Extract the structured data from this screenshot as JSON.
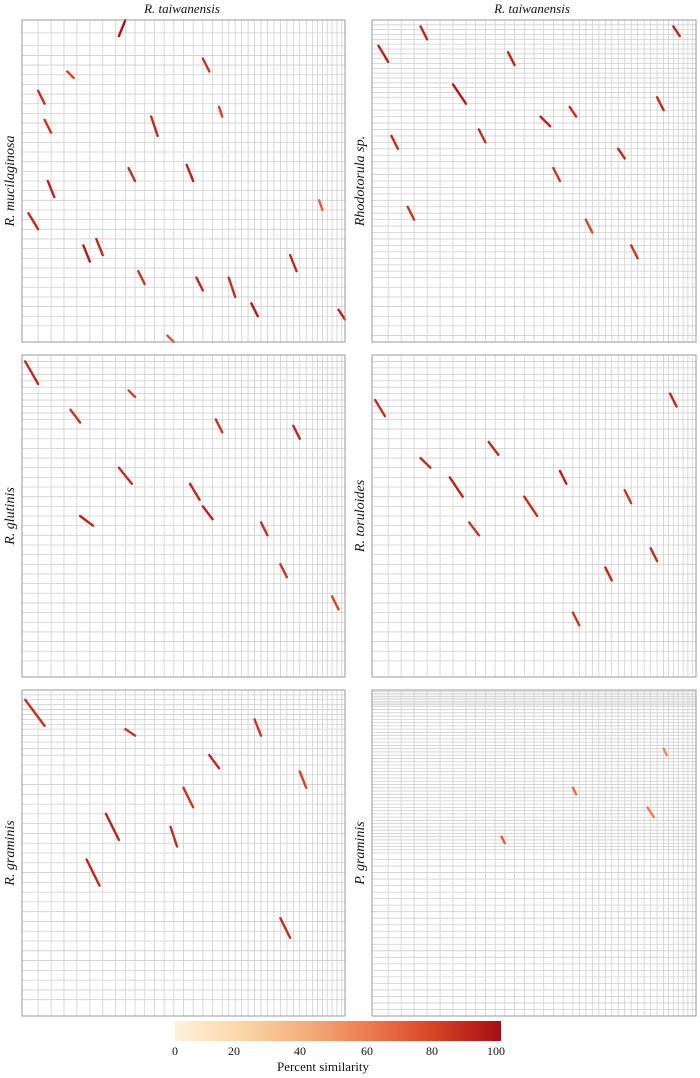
{
  "column_titles": [
    "R. taiwanensis",
    "R. taiwanensis"
  ],
  "colorbar": {
    "title": "Percent similarity",
    "ticks": [
      "0",
      "20",
      "40",
      "60",
      "80",
      "100"
    ],
    "colors": [
      "#fdf1dd",
      "#fbd7a8",
      "#f5ad7c",
      "#ec7a4d",
      "#d64226",
      "#a50f15"
    ]
  },
  "chart_data": [
    {
      "type": "scatter",
      "title": "R. taiwanensis",
      "ylabel": "R. mucilaginosa",
      "xlim": [
        0,
        1
      ],
      "ylim": [
        0,
        1
      ],
      "grid": true,
      "x_grid_fractions": [
        0.05,
        0.09,
        0.13,
        0.17,
        0.21,
        0.25,
        0.29,
        0.32,
        0.35,
        0.38,
        0.41,
        0.44,
        0.47,
        0.5,
        0.53,
        0.56,
        0.59,
        0.62,
        0.64,
        0.66,
        0.68,
        0.7,
        0.72,
        0.74,
        0.76,
        0.78,
        0.8,
        0.82,
        0.84,
        0.86,
        0.88,
        0.9,
        0.915,
        0.93,
        0.945,
        0.96,
        0.975,
        0.99
      ],
      "y_grid_fractions": [
        0.04,
        0.08,
        0.11,
        0.14,
        0.17,
        0.2,
        0.23,
        0.26,
        0.29,
        0.32,
        0.35,
        0.38,
        0.41,
        0.44,
        0.47,
        0.5,
        0.53,
        0.56,
        0.59,
        0.62,
        0.65,
        0.68,
        0.71,
        0.74,
        0.77,
        0.8,
        0.83,
        0.86,
        0.89,
        0.92,
        0.95
      ],
      "segments": [
        {
          "x1": 0.02,
          "y1": 0.6,
          "x2": 0.05,
          "y2": 0.65,
          "s": 90
        },
        {
          "x1": 0.05,
          "y1": 0.22,
          "x2": 0.07,
          "y2": 0.26,
          "s": 88
        },
        {
          "x1": 0.07,
          "y1": 0.31,
          "x2": 0.09,
          "y2": 0.35,
          "s": 85
        },
        {
          "x1": 0.08,
          "y1": 0.5,
          "x2": 0.1,
          "y2": 0.55,
          "s": 92
        },
        {
          "x1": 0.14,
          "y1": 0.16,
          "x2": 0.16,
          "y2": 0.18,
          "s": 80
        },
        {
          "x1": 0.19,
          "y1": 0.7,
          "x2": 0.21,
          "y2": 0.75,
          "s": 95
        },
        {
          "x1": 0.23,
          "y1": 0.68,
          "x2": 0.25,
          "y2": 0.73,
          "s": 90
        },
        {
          "x1": 0.3,
          "y1": 0.05,
          "x2": 0.32,
          "y2": 0.0,
          "s": 98
        },
        {
          "x1": 0.33,
          "y1": 0.46,
          "x2": 0.35,
          "y2": 0.5,
          "s": 88
        },
        {
          "x1": 0.36,
          "y1": 0.78,
          "x2": 0.38,
          "y2": 0.82,
          "s": 85
        },
        {
          "x1": 0.4,
          "y1": 0.3,
          "x2": 0.42,
          "y2": 0.36,
          "s": 90
        },
        {
          "x1": 0.45,
          "y1": 0.98,
          "x2": 0.47,
          "y2": 1.0,
          "s": 75
        },
        {
          "x1": 0.51,
          "y1": 0.45,
          "x2": 0.53,
          "y2": 0.5,
          "s": 92
        },
        {
          "x1": 0.54,
          "y1": 0.8,
          "x2": 0.56,
          "y2": 0.84,
          "s": 90
        },
        {
          "x1": 0.56,
          "y1": 0.12,
          "x2": 0.58,
          "y2": 0.16,
          "s": 85
        },
        {
          "x1": 0.61,
          "y1": 0.27,
          "x2": 0.62,
          "y2": 0.3,
          "s": 80
        },
        {
          "x1": 0.64,
          "y1": 0.8,
          "x2": 0.66,
          "y2": 0.86,
          "s": 88
        },
        {
          "x1": 0.71,
          "y1": 0.88,
          "x2": 0.73,
          "y2": 0.92,
          "s": 95
        },
        {
          "x1": 0.83,
          "y1": 0.73,
          "x2": 0.85,
          "y2": 0.78,
          "s": 90
        },
        {
          "x1": 0.92,
          "y1": 0.56,
          "x2": 0.93,
          "y2": 0.59,
          "s": 70
        },
        {
          "x1": 0.98,
          "y1": 0.9,
          "x2": 1.0,
          "y2": 0.93,
          "s": 92
        }
      ]
    },
    {
      "type": "scatter",
      "title": "R. taiwanensis",
      "ylabel": "Rhodotorula sp.",
      "xlim": [
        0,
        1
      ],
      "ylim": [
        0,
        1
      ],
      "grid": true,
      "x_grid_fractions": [
        0.05,
        0.09,
        0.13,
        0.17,
        0.21,
        0.25,
        0.29,
        0.32,
        0.35,
        0.38,
        0.41,
        0.44,
        0.47,
        0.5,
        0.53,
        0.56,
        0.59,
        0.62,
        0.64,
        0.66,
        0.68,
        0.7,
        0.72,
        0.74,
        0.76,
        0.78,
        0.8,
        0.82,
        0.84,
        0.86,
        0.88,
        0.9,
        0.915,
        0.93,
        0.945,
        0.96,
        0.975,
        0.99
      ],
      "y_grid_fractions": [
        0.015,
        0.03,
        0.045,
        0.06,
        0.075,
        0.09,
        0.105,
        0.12,
        0.135,
        0.15,
        0.165,
        0.18,
        0.195,
        0.21,
        0.225,
        0.24,
        0.26,
        0.28,
        0.3,
        0.32,
        0.34,
        0.36,
        0.38,
        0.4,
        0.42,
        0.44,
        0.46,
        0.48,
        0.5,
        0.52,
        0.54,
        0.56,
        0.58,
        0.6,
        0.62,
        0.64,
        0.66,
        0.68,
        0.7,
        0.72,
        0.74,
        0.76,
        0.78,
        0.8,
        0.83,
        0.86,
        0.89,
        0.92,
        0.95,
        0.98
      ],
      "segments": [
        {
          "x1": 0.02,
          "y1": 0.08,
          "x2": 0.05,
          "y2": 0.13,
          "s": 92
        },
        {
          "x1": 0.06,
          "y1": 0.36,
          "x2": 0.08,
          "y2": 0.4,
          "s": 88
        },
        {
          "x1": 0.11,
          "y1": 0.58,
          "x2": 0.13,
          "y2": 0.62,
          "s": 85
        },
        {
          "x1": 0.15,
          "y1": 0.02,
          "x2": 0.17,
          "y2": 0.06,
          "s": 90
        },
        {
          "x1": 0.25,
          "y1": 0.2,
          "x2": 0.29,
          "y2": 0.26,
          "s": 95
        },
        {
          "x1": 0.33,
          "y1": 0.34,
          "x2": 0.35,
          "y2": 0.38,
          "s": 88
        },
        {
          "x1": 0.42,
          "y1": 0.1,
          "x2": 0.44,
          "y2": 0.14,
          "s": 90
        },
        {
          "x1": 0.52,
          "y1": 0.3,
          "x2": 0.55,
          "y2": 0.33,
          "s": 92
        },
        {
          "x1": 0.56,
          "y1": 0.46,
          "x2": 0.58,
          "y2": 0.5,
          "s": 85
        },
        {
          "x1": 0.61,
          "y1": 0.27,
          "x2": 0.63,
          "y2": 0.3,
          "s": 88
        },
        {
          "x1": 0.66,
          "y1": 0.62,
          "x2": 0.68,
          "y2": 0.66,
          "s": 80
        },
        {
          "x1": 0.76,
          "y1": 0.4,
          "x2": 0.78,
          "y2": 0.43,
          "s": 90
        },
        {
          "x1": 0.8,
          "y1": 0.7,
          "x2": 0.82,
          "y2": 0.74,
          "s": 85
        },
        {
          "x1": 0.88,
          "y1": 0.24,
          "x2": 0.9,
          "y2": 0.28,
          "s": 88
        },
        {
          "x1": 0.93,
          "y1": 0.02,
          "x2": 0.95,
          "y2": 0.05,
          "s": 90
        }
      ]
    },
    {
      "type": "scatter",
      "title": "",
      "ylabel": "R. glutinis",
      "xlim": [
        0,
        1
      ],
      "ylim": [
        0,
        1
      ],
      "grid": true,
      "x_grid_fractions": [
        0.05,
        0.09,
        0.13,
        0.17,
        0.21,
        0.25,
        0.29,
        0.32,
        0.35,
        0.38,
        0.41,
        0.44,
        0.47,
        0.5,
        0.53,
        0.56,
        0.59,
        0.62,
        0.64,
        0.66,
        0.68,
        0.7,
        0.72,
        0.74,
        0.76,
        0.78,
        0.8,
        0.82,
        0.84,
        0.86,
        0.88,
        0.9,
        0.915,
        0.93,
        0.945,
        0.96,
        0.975,
        0.99
      ],
      "y_grid_fractions": [
        0.02,
        0.04,
        0.06,
        0.08,
        0.1,
        0.12,
        0.14,
        0.16,
        0.18,
        0.2,
        0.23,
        0.26,
        0.29,
        0.32,
        0.35,
        0.38,
        0.41,
        0.44,
        0.47,
        0.5,
        0.53,
        0.56,
        0.59,
        0.62,
        0.65,
        0.68,
        0.71,
        0.74,
        0.77,
        0.8,
        0.83,
        0.86,
        0.89,
        0.92,
        0.95
      ],
      "segments": [
        {
          "x1": 0.01,
          "y1": 0.02,
          "x2": 0.05,
          "y2": 0.09,
          "s": 90
        },
        {
          "x1": 0.15,
          "y1": 0.17,
          "x2": 0.18,
          "y2": 0.21,
          "s": 85
        },
        {
          "x1": 0.18,
          "y1": 0.5,
          "x2": 0.22,
          "y2": 0.53,
          "s": 92
        },
        {
          "x1": 0.3,
          "y1": 0.35,
          "x2": 0.34,
          "y2": 0.4,
          "s": 88
        },
        {
          "x1": 0.33,
          "y1": 0.11,
          "x2": 0.35,
          "y2": 0.13,
          "s": 80
        },
        {
          "x1": 0.52,
          "y1": 0.4,
          "x2": 0.55,
          "y2": 0.45,
          "s": 90
        },
        {
          "x1": 0.56,
          "y1": 0.47,
          "x2": 0.59,
          "y2": 0.51,
          "s": 92
        },
        {
          "x1": 0.6,
          "y1": 0.2,
          "x2": 0.62,
          "y2": 0.24,
          "s": 85
        },
        {
          "x1": 0.74,
          "y1": 0.52,
          "x2": 0.76,
          "y2": 0.56,
          "s": 88
        },
        {
          "x1": 0.8,
          "y1": 0.65,
          "x2": 0.82,
          "y2": 0.69,
          "s": 85
        },
        {
          "x1": 0.84,
          "y1": 0.22,
          "x2": 0.86,
          "y2": 0.26,
          "s": 90
        },
        {
          "x1": 0.96,
          "y1": 0.75,
          "x2": 0.98,
          "y2": 0.79,
          "s": 80
        }
      ]
    },
    {
      "type": "scatter",
      "title": "",
      "ylabel": "R. toruloides",
      "xlim": [
        0,
        1
      ],
      "ylim": [
        0,
        1
      ],
      "grid": true,
      "x_grid_fractions": [
        0.05,
        0.09,
        0.13,
        0.17,
        0.21,
        0.25,
        0.29,
        0.32,
        0.35,
        0.38,
        0.41,
        0.44,
        0.47,
        0.5,
        0.53,
        0.56,
        0.59,
        0.62,
        0.64,
        0.66,
        0.68,
        0.7,
        0.72,
        0.74,
        0.76,
        0.78,
        0.8,
        0.82,
        0.84,
        0.86,
        0.88,
        0.9,
        0.915,
        0.93,
        0.945,
        0.96,
        0.975,
        0.99
      ],
      "y_grid_fractions": [
        0.02,
        0.04,
        0.06,
        0.08,
        0.1,
        0.12,
        0.14,
        0.16,
        0.18,
        0.2,
        0.23,
        0.26,
        0.29,
        0.32,
        0.35,
        0.38,
        0.41,
        0.44,
        0.47,
        0.5,
        0.53,
        0.56,
        0.59,
        0.62,
        0.65,
        0.68,
        0.71,
        0.74,
        0.77,
        0.8,
        0.83,
        0.86,
        0.89,
        0.92,
        0.95
      ],
      "segments": [
        {
          "x1": 0.01,
          "y1": 0.14,
          "x2": 0.04,
          "y2": 0.19,
          "s": 88
        },
        {
          "x1": 0.15,
          "y1": 0.32,
          "x2": 0.18,
          "y2": 0.35,
          "s": 90
        },
        {
          "x1": 0.24,
          "y1": 0.38,
          "x2": 0.28,
          "y2": 0.44,
          "s": 92
        },
        {
          "x1": 0.3,
          "y1": 0.52,
          "x2": 0.33,
          "y2": 0.56,
          "s": 85
        },
        {
          "x1": 0.36,
          "y1": 0.27,
          "x2": 0.39,
          "y2": 0.31,
          "s": 90
        },
        {
          "x1": 0.47,
          "y1": 0.44,
          "x2": 0.51,
          "y2": 0.5,
          "s": 88
        },
        {
          "x1": 0.58,
          "y1": 0.36,
          "x2": 0.6,
          "y2": 0.4,
          "s": 92
        },
        {
          "x1": 0.62,
          "y1": 0.8,
          "x2": 0.64,
          "y2": 0.84,
          "s": 85
        },
        {
          "x1": 0.72,
          "y1": 0.66,
          "x2": 0.74,
          "y2": 0.7,
          "s": 90
        },
        {
          "x1": 0.78,
          "y1": 0.42,
          "x2": 0.8,
          "y2": 0.46,
          "s": 85
        },
        {
          "x1": 0.86,
          "y1": 0.6,
          "x2": 0.88,
          "y2": 0.64,
          "s": 88
        },
        {
          "x1": 0.92,
          "y1": 0.12,
          "x2": 0.94,
          "y2": 0.16,
          "s": 90
        }
      ]
    },
    {
      "type": "scatter",
      "title": "",
      "ylabel": "R. graminis",
      "xlim": [
        0,
        1
      ],
      "ylim": [
        0,
        1
      ],
      "grid": true,
      "x_grid_fractions": [
        0.05,
        0.09,
        0.13,
        0.17,
        0.21,
        0.25,
        0.29,
        0.32,
        0.35,
        0.38,
        0.41,
        0.44,
        0.47,
        0.5,
        0.53,
        0.56,
        0.59,
        0.62,
        0.64,
        0.66,
        0.68,
        0.7,
        0.72,
        0.74,
        0.76,
        0.78,
        0.8,
        0.82,
        0.84,
        0.86,
        0.88,
        0.9,
        0.915,
        0.93,
        0.945,
        0.96,
        0.975,
        0.99
      ],
      "y_grid_fractions": [
        0.015,
        0.03,
        0.045,
        0.06,
        0.075,
        0.09,
        0.105,
        0.12,
        0.14,
        0.16,
        0.18,
        0.2,
        0.23,
        0.26,
        0.29,
        0.32,
        0.35,
        0.38,
        0.41,
        0.44,
        0.47,
        0.5,
        0.53,
        0.56,
        0.59,
        0.62,
        0.65,
        0.68,
        0.71,
        0.74,
        0.77,
        0.8,
        0.83,
        0.86,
        0.89,
        0.92,
        0.95
      ],
      "segments": [
        {
          "x1": 0.01,
          "y1": 0.03,
          "x2": 0.07,
          "y2": 0.11,
          "s": 88
        },
        {
          "x1": 0.2,
          "y1": 0.52,
          "x2": 0.24,
          "y2": 0.6,
          "s": 90
        },
        {
          "x1": 0.26,
          "y1": 0.38,
          "x2": 0.3,
          "y2": 0.46,
          "s": 92
        },
        {
          "x1": 0.32,
          "y1": 0.12,
          "x2": 0.35,
          "y2": 0.14,
          "s": 85
        },
        {
          "x1": 0.46,
          "y1": 0.42,
          "x2": 0.48,
          "y2": 0.48,
          "s": 88
        },
        {
          "x1": 0.5,
          "y1": 0.3,
          "x2": 0.53,
          "y2": 0.36,
          "s": 85
        },
        {
          "x1": 0.58,
          "y1": 0.2,
          "x2": 0.61,
          "y2": 0.24,
          "s": 90
        },
        {
          "x1": 0.72,
          "y1": 0.09,
          "x2": 0.74,
          "y2": 0.14,
          "s": 85
        },
        {
          "x1": 0.8,
          "y1": 0.7,
          "x2": 0.83,
          "y2": 0.76,
          "s": 88
        },
        {
          "x1": 0.86,
          "y1": 0.25,
          "x2": 0.88,
          "y2": 0.3,
          "s": 80
        }
      ]
    },
    {
      "type": "scatter",
      "title": "",
      "ylabel": "P. graminis",
      "xlim": [
        0,
        1
      ],
      "ylim": [
        0,
        1
      ],
      "grid": true,
      "x_grid_fractions": [
        0.05,
        0.09,
        0.13,
        0.17,
        0.21,
        0.25,
        0.29,
        0.32,
        0.35,
        0.38,
        0.41,
        0.44,
        0.47,
        0.5,
        0.53,
        0.56,
        0.59,
        0.62,
        0.64,
        0.66,
        0.68,
        0.7,
        0.72,
        0.74,
        0.76,
        0.78,
        0.8,
        0.82,
        0.84,
        0.86,
        0.88,
        0.9,
        0.915,
        0.93,
        0.945,
        0.96,
        0.975,
        0.99
      ],
      "y_grid_fractions": [
        0.005,
        0.01,
        0.015,
        0.02,
        0.025,
        0.03,
        0.035,
        0.04,
        0.045,
        0.05,
        0.06,
        0.07,
        0.08,
        0.09,
        0.1,
        0.11,
        0.12,
        0.13,
        0.14,
        0.15,
        0.16,
        0.17,
        0.18,
        0.19,
        0.2,
        0.21,
        0.22,
        0.23,
        0.24,
        0.25,
        0.26,
        0.27,
        0.28,
        0.29,
        0.3,
        0.31,
        0.32,
        0.33,
        0.34,
        0.35,
        0.36,
        0.37,
        0.38,
        0.39,
        0.4,
        0.41,
        0.42,
        0.43,
        0.44,
        0.45,
        0.46,
        0.47,
        0.48,
        0.49,
        0.5,
        0.52,
        0.54,
        0.56,
        0.58,
        0.6,
        0.62,
        0.64,
        0.66,
        0.68,
        0.7,
        0.72,
        0.74,
        0.76,
        0.78,
        0.8,
        0.82,
        0.84,
        0.86,
        0.88,
        0.9,
        0.92,
        0.94,
        0.96,
        0.98
      ],
      "segments": [
        {
          "x1": 0.4,
          "y1": 0.45,
          "x2": 0.41,
          "y2": 0.47,
          "s": 70
        },
        {
          "x1": 0.62,
          "y1": 0.3,
          "x2": 0.63,
          "y2": 0.32,
          "s": 65
        },
        {
          "x1": 0.85,
          "y1": 0.36,
          "x2": 0.87,
          "y2": 0.39,
          "s": 60
        },
        {
          "x1": 0.9,
          "y1": 0.18,
          "x2": 0.91,
          "y2": 0.2,
          "s": 55
        }
      ]
    }
  ]
}
